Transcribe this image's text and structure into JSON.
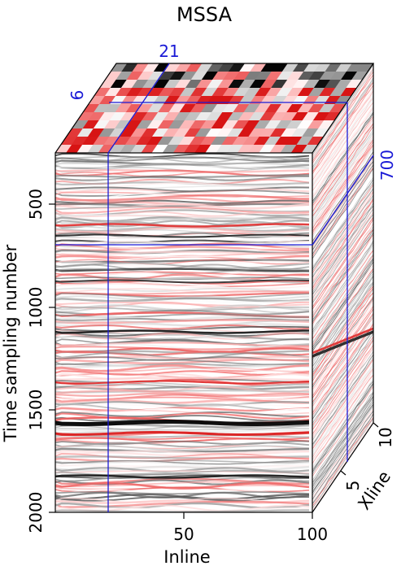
{
  "figure": {
    "title": "MSSA",
    "x_axis_label": "Inline",
    "y_axis_label": "Time sampling number",
    "z_axis_label": "Xline"
  },
  "axes": {
    "x_ticks": [
      "50",
      "100"
    ],
    "y_ticks": [
      "500",
      "1000",
      "1500",
      "2000"
    ],
    "z_ticks": [
      "5",
      "10"
    ]
  },
  "slice_markers": {
    "inline": "21",
    "xline": "6",
    "time": "700"
  },
  "colors": {
    "marker_line": "#1a1ad6",
    "positive": "#e01010",
    "negative": "#000000",
    "background": "#ffffff"
  }
}
